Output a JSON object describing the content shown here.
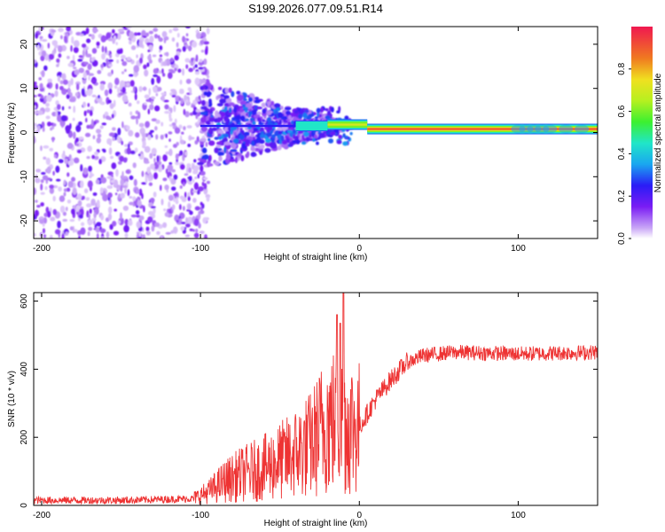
{
  "chart_data": [
    {
      "type": "heatmap",
      "title": "S199.2026.077.09.51.R14",
      "xlabel": "Height of straight line (km)",
      "ylabel": "Frequency (Hz)",
      "xlim": [
        -205,
        150
      ],
      "ylim": [
        -24,
        24
      ],
      "x_ticks": [
        -200,
        -100,
        0,
        100
      ],
      "x_tick_labels": [
        "-200",
        "-100",
        "0",
        "100"
      ],
      "y_ticks": [
        -20,
        -10,
        0,
        10,
        20
      ],
      "y_tick_labels": [
        "-20",
        "-10",
        "0",
        "10",
        "20"
      ],
      "colorbar": {
        "label": "Normalized spectral amplitude",
        "range": [
          0,
          1
        ],
        "ticks": [
          0.0,
          0.2,
          0.4,
          0.6,
          0.8
        ],
        "tick_labels": [
          "0.0",
          "0.2",
          "0.4",
          "0.6",
          "0.8"
        ]
      },
      "signal_line": {
        "frequency_hz": 1.0,
        "amplitude": 0.9,
        "x_range": [
          0,
          150
        ],
        "segments": [
          {
            "x": [
              -100,
              -40
            ],
            "freq": 1.5,
            "amp": 0.25
          },
          {
            "x": [
              -40,
              -20
            ],
            "freq": 1.5,
            "amp": 0.45
          },
          {
            "x": [
              -20,
              5
            ],
            "freq": 1.8,
            "amp": 0.7
          },
          {
            "x": [
              5,
              150
            ],
            "freq": 0.8,
            "amp": 0.9
          }
        ]
      }
    },
    {
      "type": "line",
      "xlabel": "Height of straight line (km)",
      "ylabel": "SNR (10 * v/v)",
      "xlim": [
        -205,
        150
      ],
      "ylim": [
        0,
        625
      ],
      "x_ticks": [
        -200,
        -100,
        0,
        100
      ],
      "x_tick_labels": [
        "-200",
        "-100",
        "0",
        "100"
      ],
      "y_ticks": [
        0,
        200,
        400,
        600
      ],
      "y_tick_labels": [
        "0",
        "200",
        "400",
        "600"
      ],
      "color": "#ee3333",
      "series": [
        {
          "name": "SNR",
          "x": [
            -205,
            -150,
            -120,
            -105,
            -95,
            -85,
            -75,
            -60,
            -45,
            -30,
            -20,
            -10,
            0,
            10,
            20,
            30,
            40,
            60,
            100,
            150
          ],
          "y": [
            15,
            15,
            18,
            20,
            40,
            70,
            90,
            110,
            140,
            180,
            250,
            240,
            230,
            310,
            370,
            420,
            440,
            450,
            445,
            450
          ]
        }
      ]
    }
  ]
}
